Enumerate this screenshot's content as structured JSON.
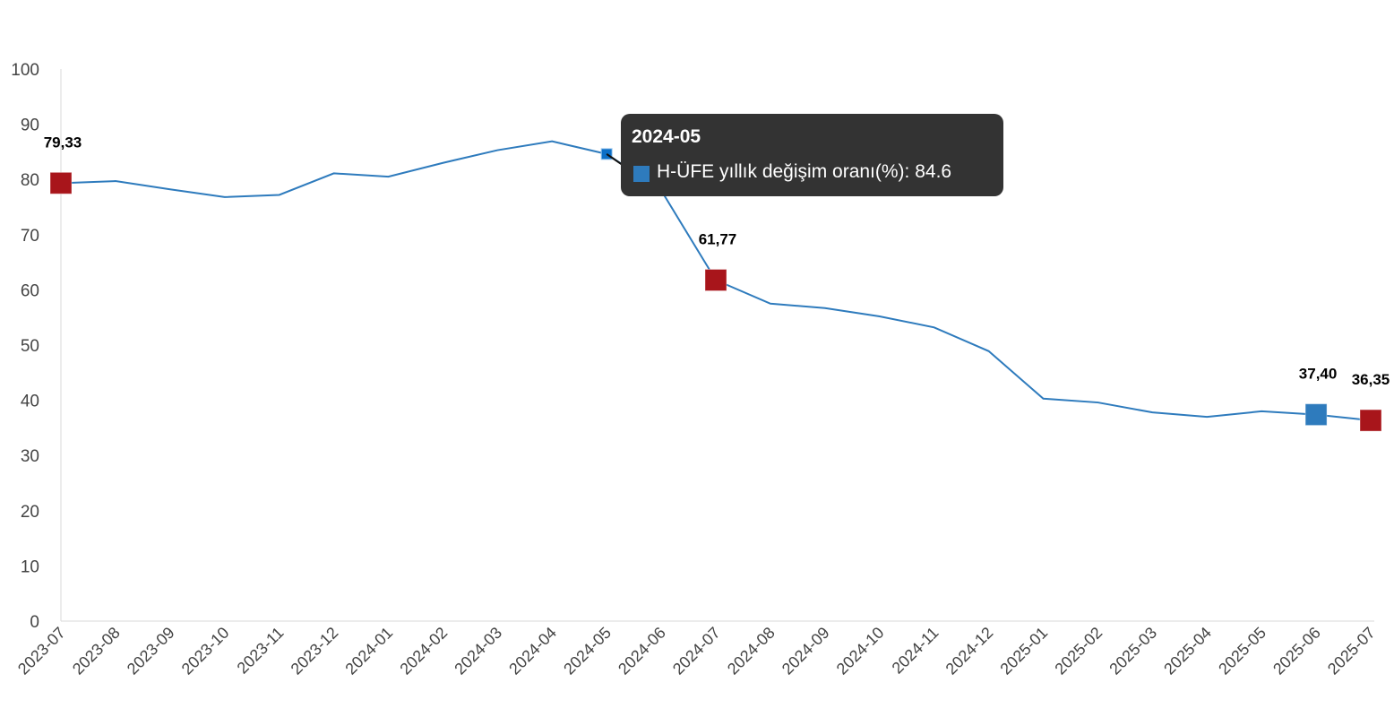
{
  "chart_data": {
    "type": "line",
    "categories": [
      "2023-07",
      "2023-08",
      "2023-09",
      "2023-10",
      "2023-11",
      "2023-12",
      "2024-01",
      "2024-02",
      "2024-03",
      "2024-04",
      "2024-05",
      "2024-06",
      "2024-07",
      "2024-08",
      "2024-09",
      "2024-10",
      "2024-11",
      "2024-12",
      "2025-01",
      "2025-02",
      "2025-03",
      "2025-04",
      "2025-05",
      "2025-06",
      "2025-07"
    ],
    "series": [
      {
        "name": "H-ÜFE yıllık değişim oranı(%)",
        "values": [
          79.33,
          79.7,
          78.2,
          76.8,
          77.2,
          81.1,
          80.5,
          83.0,
          85.3,
          86.9,
          84.6,
          78.0,
          61.77,
          57.5,
          56.7,
          55.2,
          53.2,
          48.9,
          40.3,
          39.6,
          37.8,
          37.0,
          38.0,
          37.4,
          36.35
        ]
      }
    ],
    "ylim": [
      0,
      100
    ],
    "yticks": [
      "0",
      "10",
      "20",
      "30",
      "40",
      "50",
      "60",
      "70",
      "80",
      "90",
      "100"
    ],
    "data_labels": [
      {
        "category": "2023-07",
        "text": "79,33",
        "marker": "#a8151b"
      },
      {
        "category": "2024-07",
        "text": "61,77",
        "marker": "#a8151b"
      },
      {
        "category": "2025-06",
        "text": "37,40",
        "marker": "#2e7bbd"
      },
      {
        "category": "2025-07",
        "text": "36,35",
        "marker": "#a8151b"
      }
    ],
    "line_color": "#2e7bbd",
    "grid": false,
    "tooltip": {
      "title": "2024-05",
      "label": "H-ÜFE yıllık değişim oranı(%): 84.6",
      "category": "2024-05"
    }
  }
}
